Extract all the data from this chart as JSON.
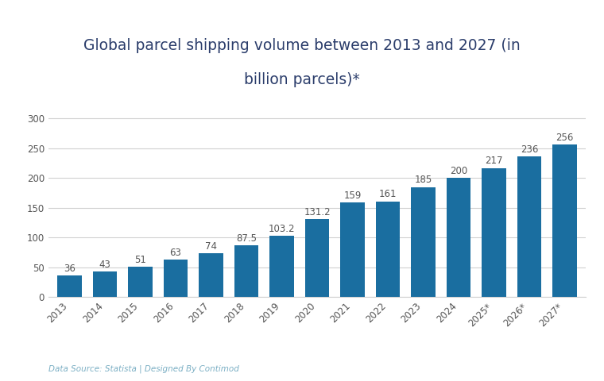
{
  "categories": [
    "2013",
    "2014",
    "2015",
    "2016",
    "2017",
    "2018",
    "2019",
    "2020",
    "2021",
    "2022",
    "2023",
    "2024",
    "2025*",
    "2026*",
    "2027*"
  ],
  "values": [
    36,
    43,
    51,
    63,
    74,
    87.5,
    103.2,
    131.2,
    159,
    161,
    185,
    200,
    217,
    236,
    256
  ],
  "labels": [
    "36",
    "43",
    "51",
    "63",
    "74",
    "87.5",
    "103.2",
    "131.2",
    "159",
    "161",
    "185",
    "200",
    "217",
    "236",
    "256"
  ],
  "bar_color": "#1a6ea0",
  "background_color": "#ffffff",
  "title_line1": "Global parcel shipping volume between 2013 and 2027 (in",
  "title_line2": "billion parcels)*",
  "title_color": "#2b3d6b",
  "footer_text": "Data Source: Statista | Designed By Contimod",
  "footer_color": "#7bafc4",
  "ylim": [
    0,
    320
  ],
  "yticks": [
    0,
    50,
    100,
    150,
    200,
    250,
    300
  ],
  "grid_color": "#d0d0d0",
  "tick_label_color": "#555555",
  "label_fontsize": 8.5,
  "title_fontsize": 13.5,
  "footer_fontsize": 7.5,
  "axis_tick_fontsize": 8.5
}
